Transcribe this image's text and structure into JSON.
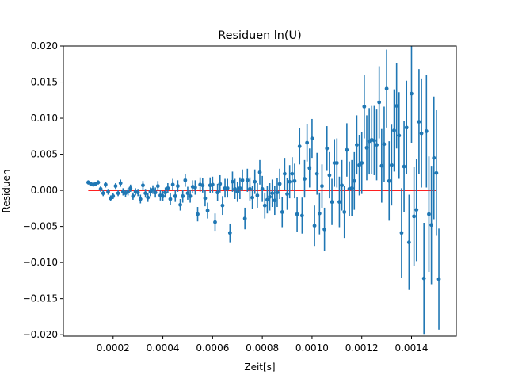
{
  "chart_data": {
    "type": "scatter",
    "title": "Residuen ln(U)",
    "xlabel": "Zeit[s]",
    "ylabel": "Residuen",
    "xlim": [
      0.0,
      0.00158
    ],
    "ylim": [
      -0.0202,
      0.02
    ],
    "grid": false,
    "x_ticks": [
      0.0002,
      0.0004,
      0.0006,
      0.0008,
      0.001,
      0.0012,
      0.0014
    ],
    "x_tick_labels": [
      "0.0002",
      "0.0004",
      "0.0006",
      "0.0008",
      "0.0010",
      "0.0012",
      "0.0014"
    ],
    "y_ticks": [
      -0.02,
      -0.015,
      -0.01,
      -0.005,
      0.0,
      0.005,
      0.01,
      0.015,
      0.02
    ],
    "y_tick_labels": [
      "−0.020",
      "−0.015",
      "−0.010",
      "−0.005",
      "0.000",
      "0.005",
      "0.010",
      "0.015",
      "0.020"
    ],
    "zero_line": {
      "x_start": 0.0001,
      "x_end": 0.0015,
      "y": 0.0,
      "color": "#ff0000"
    },
    "series": [
      {
        "color": "#1f77b4",
        "points": [
          [
            0.0001,
            0.0011,
            0.0003
          ],
          [
            0.00011,
            0.0009,
            0.0003
          ],
          [
            0.00012,
            0.0008,
            0.0003
          ],
          [
            0.00013,
            0.0009,
            0.0003
          ],
          [
            0.00014,
            0.0011,
            0.0003
          ],
          [
            0.00015,
            0.0002,
            0.0004
          ],
          [
            0.00016,
            -0.0004,
            0.0004
          ],
          [
            0.00017,
            0.0008,
            0.0004
          ],
          [
            0.00018,
            -0.0002,
            0.0004
          ],
          [
            0.00019,
            -0.0011,
            0.0004
          ],
          [
            0.0002,
            -0.0008,
            0.0004
          ],
          [
            0.00021,
            0.0006,
            0.0004
          ],
          [
            0.00022,
            -0.0004,
            0.0004
          ],
          [
            0.00023,
            0.001,
            0.0005
          ],
          [
            0.00024,
            -0.0002,
            0.0005
          ],
          [
            0.00025,
            -0.0004,
            0.0005
          ],
          [
            0.00026,
            -0.0002,
            0.0005
          ],
          [
            0.00027,
            0.0003,
            0.0005
          ],
          [
            0.00028,
            -0.0008,
            0.0005
          ],
          [
            0.00029,
            -0.0002,
            0.0005
          ],
          [
            0.0003,
            -0.0003,
            0.0005
          ],
          [
            0.00031,
            -0.0012,
            0.0006
          ],
          [
            0.00032,
            0.0007,
            0.0006
          ],
          [
            0.00033,
            -0.0004,
            0.0006
          ],
          [
            0.00034,
            -0.001,
            0.0006
          ],
          [
            0.00035,
            -0.0002,
            0.0006
          ],
          [
            0.00036,
            0.0001,
            0.0006
          ],
          [
            0.00037,
            -0.0003,
            0.0007
          ],
          [
            0.00038,
            0.0006,
            0.0007
          ],
          [
            0.00039,
            -0.0007,
            0.0007
          ],
          [
            0.0004,
            -0.0008,
            0.0007
          ],
          [
            0.00041,
            -0.0003,
            0.0007
          ],
          [
            0.00042,
            0.0003,
            0.0007
          ],
          [
            0.00043,
            -0.0012,
            0.0008
          ],
          [
            0.00044,
            0.0008,
            0.0008
          ],
          [
            0.00045,
            -0.0008,
            0.0008
          ],
          [
            0.00046,
            0.0006,
            0.0008
          ],
          [
            0.00047,
            -0.002,
            0.0008
          ],
          [
            0.00048,
            -0.0008,
            0.0009
          ],
          [
            0.00049,
            0.0014,
            0.0009
          ],
          [
            0.0005,
            -0.0004,
            0.0009
          ],
          [
            0.00051,
            -0.0008,
            0.0009
          ],
          [
            0.00052,
            0.0005,
            0.0009
          ],
          [
            0.00053,
            0.0004,
            0.001
          ],
          [
            0.00054,
            -0.0033,
            0.001
          ],
          [
            0.00055,
            0.0008,
            0.001
          ],
          [
            0.00056,
            0.0007,
            0.001
          ],
          [
            0.00057,
            -0.0011,
            0.0011
          ],
          [
            0.00058,
            -0.0028,
            0.0011
          ],
          [
            0.00059,
            0.0007,
            0.0011
          ],
          [
            0.0006,
            0.0008,
            0.0011
          ],
          [
            0.00061,
            -0.0044,
            0.0012
          ],
          [
            0.00062,
            -0.0003,
            0.0012
          ],
          [
            0.00063,
            0.0009,
            0.0012
          ],
          [
            0.00064,
            -0.0021,
            0.0013
          ],
          [
            0.00065,
            0.0003,
            0.0013
          ],
          [
            0.00066,
            0.0003,
            0.0013
          ],
          [
            0.00067,
            -0.0059,
            0.0013
          ],
          [
            0.00068,
            0.0012,
            0.0014
          ],
          [
            0.00069,
            0.0002,
            0.0014
          ],
          [
            0.0007,
            -0.0002,
            0.0014
          ],
          [
            0.00071,
            0.0003,
            0.0015
          ],
          [
            0.00072,
            0.0014,
            0.0015
          ],
          [
            0.00073,
            -0.0039,
            0.0015
          ],
          [
            0.00074,
            0.0014,
            0.0016
          ],
          [
            0.00075,
            0.0002,
            0.0016
          ],
          [
            0.00076,
            -0.001,
            0.0016
          ],
          [
            0.00077,
            0.0012,
            0.0017
          ],
          [
            0.00078,
            -0.0007,
            0.0017
          ],
          [
            0.00079,
            0.0025,
            0.0017
          ],
          [
            0.0008,
            0.0002,
            0.0018
          ],
          [
            0.00081,
            -0.0021,
            0.0018
          ],
          [
            0.00082,
            -0.0013,
            0.0019
          ],
          [
            0.00083,
            -0.0009,
            0.0019
          ],
          [
            0.00084,
            -0.0004,
            0.0019
          ],
          [
            0.00085,
            -0.0014,
            0.002
          ],
          [
            0.00086,
            -0.0003,
            0.002
          ],
          [
            0.00087,
            0.0009,
            0.0021
          ],
          [
            0.00088,
            -0.003,
            0.0021
          ],
          [
            0.00089,
            0.0023,
            0.0022
          ],
          [
            0.0009,
            -0.0005,
            0.0022
          ],
          [
            0.00091,
            0.0012,
            0.0023
          ],
          [
            0.00092,
            0.0023,
            0.0023
          ],
          [
            0.00093,
            0.0013,
            0.0024
          ],
          [
            0.00094,
            -0.0033,
            0.0024
          ],
          [
            0.00095,
            0.0061,
            0.0025
          ],
          [
            0.00096,
            -0.0035,
            0.0025
          ],
          [
            0.00097,
            0.0016,
            0.0026
          ],
          [
            0.00098,
            0.0066,
            0.0026
          ],
          [
            0.00099,
            0.0031,
            0.0027
          ],
          [
            0.001,
            0.0072,
            0.0027
          ],
          [
            0.00101,
            -0.0049,
            0.0028
          ],
          [
            0.00102,
            0.0023,
            0.0029
          ],
          [
            0.00103,
            -0.0032,
            0.0029
          ],
          [
            0.00104,
            0.0006,
            0.003
          ],
          [
            0.00105,
            -0.0054,
            0.003
          ],
          [
            0.00106,
            0.0058,
            0.0031
          ],
          [
            0.00107,
            0.0021,
            0.0032
          ],
          [
            0.00108,
            -0.0016,
            0.0032
          ],
          [
            0.00109,
            0.0038,
            0.0033
          ],
          [
            0.0011,
            0.0038,
            0.0034
          ],
          [
            0.00111,
            -0.0016,
            0.0035
          ],
          [
            0.00112,
            0.0007,
            0.0035
          ],
          [
            0.00113,
            -0.003,
            0.0036
          ],
          [
            0.00114,
            0.0056,
            0.0037
          ],
          [
            0.00115,
            0.0002,
            0.0038
          ],
          [
            0.00116,
            0.0003,
            0.0039
          ],
          [
            0.00117,
            0.0013,
            0.004
          ],
          [
            0.00118,
            0.0063,
            0.0041
          ],
          [
            0.00119,
            0.0035,
            0.0042
          ],
          [
            0.0012,
            0.0038,
            0.0043
          ],
          [
            0.00121,
            0.0116,
            0.0044
          ],
          [
            0.00122,
            0.0059,
            0.0045
          ],
          [
            0.00123,
            0.0068,
            0.0046
          ],
          [
            0.00124,
            0.007,
            0.0047
          ],
          [
            0.00125,
            0.0069,
            0.0048
          ],
          [
            0.00126,
            0.0063,
            0.0049
          ],
          [
            0.00127,
            0.0122,
            0.005
          ],
          [
            0.00128,
            0.0034,
            0.0051
          ],
          [
            0.00129,
            0.0064,
            0.0052
          ],
          [
            0.0013,
            0.0141,
            0.0054
          ],
          [
            0.00131,
            0.0013,
            0.0055
          ],
          [
            0.00132,
            0.0035,
            0.0056
          ],
          [
            0.00133,
            0.0083,
            0.0057
          ],
          [
            0.00134,
            0.0117,
            0.0059
          ],
          [
            0.00135,
            0.0076,
            0.006
          ],
          [
            0.00136,
            -0.0059,
            0.0062
          ],
          [
            0.00137,
            0.0033,
            0.0063
          ],
          [
            0.00138,
            0.0087,
            0.0065
          ],
          [
            0.00139,
            -0.0072,
            0.0066
          ],
          [
            0.0014,
            0.0134,
            0.0068
          ],
          [
            0.00141,
            -0.0036,
            0.0069
          ],
          [
            0.00142,
            -0.0027,
            0.0071
          ],
          [
            0.00143,
            0.0095,
            0.0073
          ],
          [
            0.00144,
            0.0079,
            0.0075
          ],
          [
            0.00145,
            -0.0122,
            0.0077
          ],
          [
            0.00146,
            0.0082,
            0.0078
          ],
          [
            0.00147,
            -0.0033,
            0.008
          ],
          [
            0.00148,
            -0.0048,
            0.0082
          ],
          [
            0.00149,
            0.0045,
            0.0085
          ],
          [
            0.0015,
            0.0024,
            0.0087
          ],
          [
            0.00151,
            -0.0123,
            0.007
          ]
        ]
      }
    ]
  }
}
